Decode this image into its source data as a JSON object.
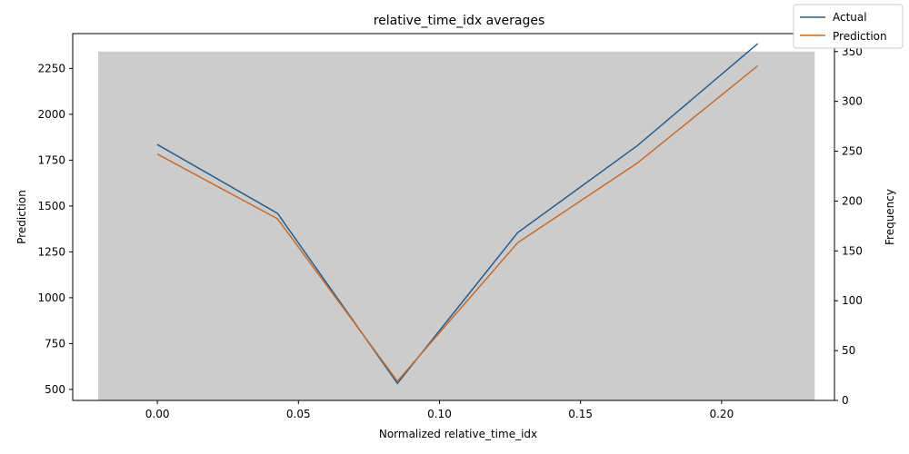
{
  "chart_data": {
    "type": "line",
    "title": "relative_time_idx averages",
    "xlabel": "Normalized relative_time_idx",
    "ylabel": "Prediction",
    "y2label": "Frequency",
    "xlim": [
      -0.03,
      0.24
    ],
    "ylim": [
      440,
      2440
    ],
    "y2lim": [
      0,
      368
    ],
    "x_ticks": [
      "0.00",
      "0.05",
      "0.10",
      "0.15",
      "0.20"
    ],
    "y_ticks": [
      "500",
      "750",
      "1000",
      "1250",
      "1500",
      "1750",
      "2000",
      "2250"
    ],
    "y2_ticks": [
      "0",
      "50",
      "100",
      "150",
      "200",
      "250",
      "300",
      "350"
    ],
    "grid": false,
    "legend_position": "top-right",
    "histogram": {
      "x_start": -0.021,
      "x_end": 0.233,
      "frequency": 350,
      "color": "#cccccc"
    },
    "x": [
      0.0,
      0.0426,
      0.0851,
      0.1277,
      0.1702,
      0.2128
    ],
    "series": [
      {
        "name": "Actual",
        "color": "#1f5f99",
        "values": [
          1835,
          1460,
          533,
          1355,
          1830,
          2385
        ]
      },
      {
        "name": "Prediction",
        "color": "#d2691e",
        "values": [
          1783,
          1430,
          545,
          1300,
          1735,
          2265
        ]
      }
    ]
  }
}
